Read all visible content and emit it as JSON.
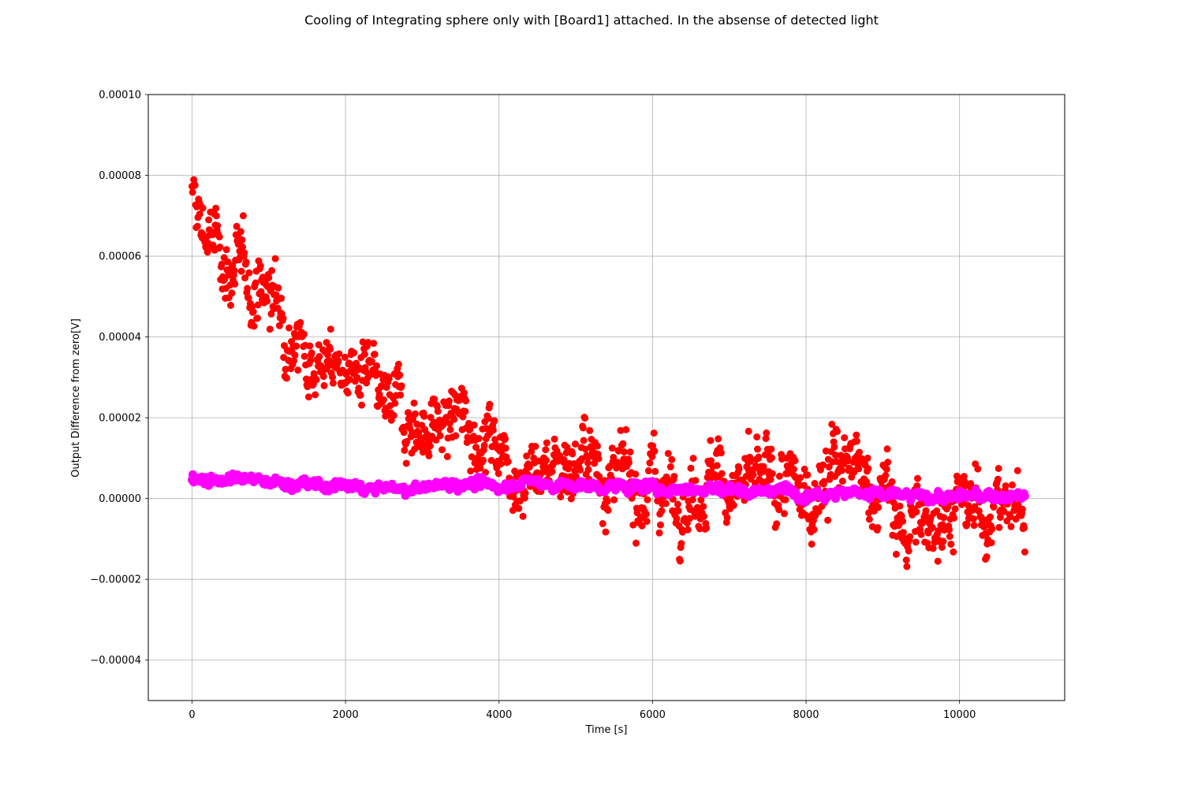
{
  "chart_data": {
    "type": "scatter",
    "title": "Cooling of Integrating sphere only with [Board1] attached. In the absense of detected light",
    "xlabel": "Time [s]",
    "ylabel": "Output Difference from zero[V]",
    "xlim": [
      -570,
      11370
    ],
    "ylim": [
      -5e-05,
      0.0001
    ],
    "xticks": [
      0,
      2000,
      4000,
      6000,
      8000,
      10000
    ],
    "xtick_labels": [
      "0",
      "2000",
      "4000",
      "6000",
      "8000",
      "10000"
    ],
    "yticks": [
      -4e-05,
      -2e-05,
      0.0,
      2e-05,
      4e-05,
      6e-05,
      8e-05,
      0.0001
    ],
    "ytick_labels": [
      "−0.00004",
      "−0.00002",
      "0.00000",
      "0.00002",
      "0.00004",
      "0.00006",
      "0.00008",
      "0.00010"
    ],
    "grid": true,
    "series": [
      {
        "color": "#ff0000",
        "marker": "circle",
        "x": [
          0,
          250,
          500,
          750,
          1000,
          1250,
          1500,
          1750,
          2000,
          2250,
          2500,
          2750,
          3000,
          3250,
          3500,
          3750,
          4000,
          4250,
          4500,
          4750,
          5000,
          5250,
          5500,
          5750,
          6000,
          6250,
          6500,
          6750,
          7000,
          7250,
          7500,
          7750,
          8000,
          8250,
          8500,
          8750,
          9000,
          9250,
          9500,
          9750,
          10000,
          10250,
          10500,
          10850
        ],
        "y": [
          7.2e-05,
          6.4e-05,
          5.7e-05,
          5.4e-05,
          5.1e-05,
          4.4e-05,
          3.6e-05,
          3.3e-05,
          3.2e-05,
          2.9e-05,
          2.1e-05,
          2.2e-05,
          1.7e-05,
          1.8e-05,
          2e-05,
          1.6e-05,
          1.4e-05,
          6e-06,
          7e-06,
          9e-06,
          1e-05,
          9e-06,
          4e-06,
          3e-06,
          5e-06,
          2e-06,
          3e-06,
          5e-06,
          4e-06,
          2e-06,
          4e-06,
          2e-06,
          -1e-06,
          8e-06,
          8e-06,
          4e-06,
          3e-06,
          -9e-06,
          -6e-06,
          -2e-06,
          -3e-06,
          -3e-06,
          -2e-06,
          -2e-06
        ],
        "spread": [
          1e-05,
          8e-06,
          8e-06,
          8e-06,
          8e-06,
          8e-06,
          7e-06,
          7e-06,
          7e-06,
          8e-06,
          8e-06,
          8e-06,
          7e-06,
          8e-06,
          8e-06,
          8e-06,
          7e-06,
          8e-06,
          8e-06,
          8e-06,
          8e-06,
          8e-06,
          8e-06,
          8e-06,
          9e-06,
          8e-06,
          8e-06,
          8e-06,
          8e-06,
          8e-06,
          8e-06,
          8e-06,
          9e-06,
          9e-06,
          9e-06,
          8e-06,
          8e-06,
          9e-06,
          9e-06,
          9e-06,
          8e-06,
          8e-06,
          8e-06,
          8e-06
        ]
      },
      {
        "color": "#ff00ff",
        "marker": "circle",
        "x": [
          0,
          250,
          500,
          750,
          1000,
          1250,
          1500,
          1750,
          2000,
          2250,
          2500,
          2750,
          3000,
          3250,
          3500,
          3750,
          4000,
          4250,
          4500,
          4750,
          5000,
          5250,
          5500,
          5750,
          6000,
          6250,
          6500,
          6750,
          7000,
          7250,
          7500,
          7750,
          8000,
          8250,
          8500,
          8750,
          9000,
          9250,
          9500,
          9750,
          10000,
          10250,
          10500,
          10850
        ],
        "y": [
          4.5e-06,
          5e-06,
          4.5e-06,
          4.5e-06,
          4.5e-06,
          3.5e-06,
          3.5e-06,
          3e-06,
          3e-06,
          2.5e-06,
          2.5e-06,
          2e-06,
          2.5e-06,
          3.5e-06,
          4e-06,
          3e-06,
          3e-06,
          4e-06,
          4e-06,
          3.5e-06,
          3e-06,
          3e-06,
          3e-06,
          3e-06,
          2.5e-06,
          2.5e-06,
          2.5e-06,
          2.5e-06,
          2.5e-06,
          2e-06,
          2e-06,
          2e-06,
          1.5e-06,
          1.5e-06,
          1.5e-06,
          1.5e-06,
          1e-06,
          5e-07,
          5e-07,
          5e-07,
          5e-07,
          5e-07,
          5e-07,
          5e-07
        ],
        "spread": [
          1.2e-06,
          1.2e-06,
          1.2e-06,
          1.2e-06,
          1.2e-06,
          1.2e-06,
          1.2e-06,
          1.2e-06,
          1.2e-06,
          1.2e-06,
          1.2e-06,
          1.2e-06,
          1.2e-06,
          1.2e-06,
          1.2e-06,
          1.2e-06,
          1.2e-06,
          1.2e-06,
          1.2e-06,
          1.2e-06,
          1.2e-06,
          1.2e-06,
          1.2e-06,
          1.2e-06,
          1.2e-06,
          1.2e-06,
          1.2e-06,
          1.2e-06,
          1.2e-06,
          1.2e-06,
          1.2e-06,
          1.2e-06,
          1.2e-06,
          1.2e-06,
          1.2e-06,
          1.2e-06,
          1.2e-06,
          1.2e-06,
          1.2e-06,
          1.2e-06,
          1.2e-06,
          1.2e-06,
          1.2e-06,
          1.2e-06
        ]
      }
    ]
  }
}
